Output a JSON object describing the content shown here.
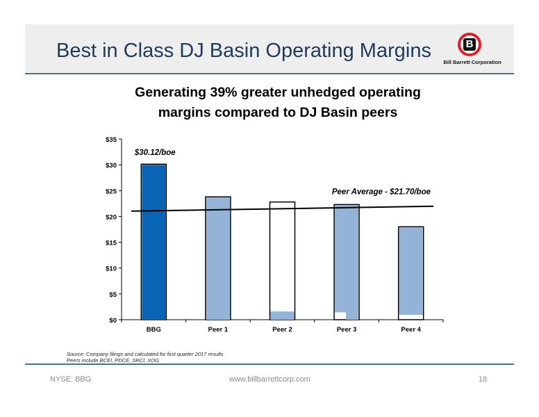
{
  "header": {
    "title": "Best in Class DJ Basin Operating Margins",
    "logo_letter": "B",
    "logo_text": "Bill Barrett Corporation"
  },
  "subtitle_lines": [
    "Generating 39% greater unhedged operating",
    "margins compared to DJ Basin peers"
  ],
  "chart_data": {
    "type": "bar",
    "categories": [
      "BBG",
      "Peer 1",
      "Peer 2",
      "Peer 3",
      "Peer 4"
    ],
    "values": [
      30.12,
      23.8,
      22.8,
      22.3,
      18.0
    ],
    "ylim": [
      0,
      35
    ],
    "yticks": [
      0,
      5,
      10,
      15,
      20,
      25,
      30,
      35
    ],
    "ytick_labels": [
      "$0",
      "$5",
      "$10",
      "$15",
      "$20",
      "$25",
      "$30",
      "$35"
    ],
    "bar_fill_fraction": [
      1,
      1,
      0.07,
      0.93,
      0.94
    ],
    "annotations": {
      "bbg_label": "$30.12/boe",
      "peer_average_label": "Peer Average - $21.70/boe"
    },
    "peer_average": 21.7,
    "colors": {
      "highlight": "#0a64b4",
      "peer": "#95b3d7",
      "outline": "#000000"
    },
    "grid": false
  },
  "source": {
    "line1": "Source:  Company filings and calculated for first quarter 2017 results",
    "line2": "Peers include BCEI, PDCE, SRCI, XOG"
  },
  "footer": {
    "ticker": "NYSE: BBG",
    "website": "www.billbarrettcorp.com",
    "page": "18"
  }
}
